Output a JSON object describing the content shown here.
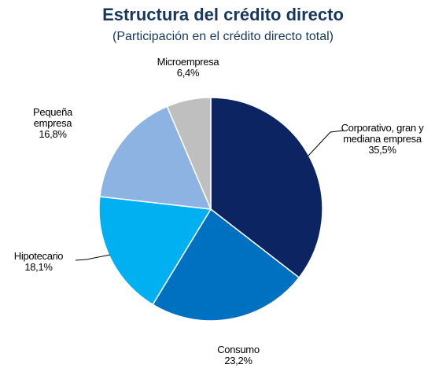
{
  "chart_data": {
    "type": "pie",
    "title": "Estructura del crédito directo",
    "subtitle": "(Participación en el crédito directo total)",
    "categories": [
      "Corporativo, gran y mediana empresa",
      "Consumo",
      "Hipotecario",
      "Pequeña empresa",
      "Microempresa"
    ],
    "values": [
      35.5,
      23.2,
      18.1,
      16.8,
      6.4
    ],
    "value_labels": [
      "35,5%",
      "23,2%",
      "18,1%",
      "16,8%",
      "6,4%"
    ],
    "colors": [
      "#0c2461",
      "#0070c0",
      "#00b0f0",
      "#8db3e2",
      "#bfbfbf"
    ]
  }
}
